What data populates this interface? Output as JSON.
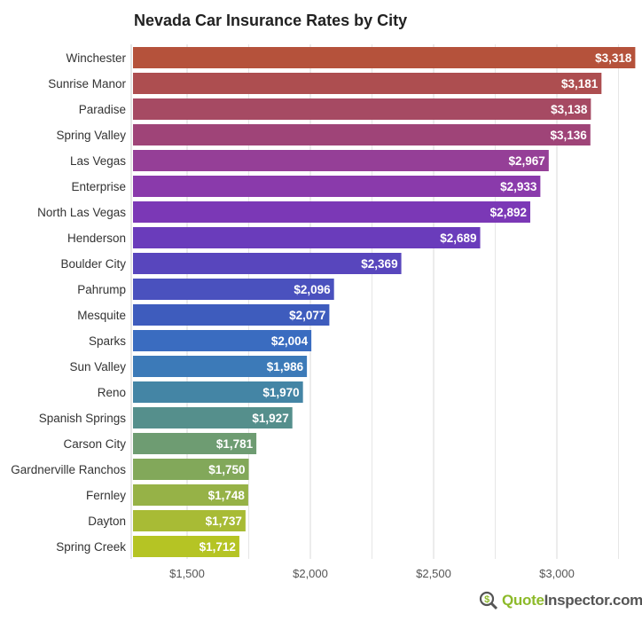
{
  "chart_data": {
    "type": "bar",
    "orientation": "horizontal",
    "title": "Nevada Car Insurance Rates by City",
    "categories": [
      "Winchester",
      "Sunrise Manor",
      "Paradise",
      "Spring Valley",
      "Las Vegas",
      "Enterprise",
      "North Las Vegas",
      "Henderson",
      "Boulder City",
      "Pahrump",
      "Mesquite",
      "Sparks",
      "Sun Valley",
      "Reno",
      "Spanish Springs",
      "Carson City",
      "Gardnerville Ranchos",
      "Fernley",
      "Dayton",
      "Spring Creek"
    ],
    "values": [
      3318,
      3181,
      3138,
      3136,
      2967,
      2933,
      2892,
      2689,
      2369,
      2096,
      2077,
      2004,
      1986,
      1970,
      1927,
      1781,
      1750,
      1748,
      1737,
      1712
    ],
    "data_labels": [
      "$3,318",
      "$3,181",
      "$3,138",
      "$3,136",
      "$2,967",
      "$2,933",
      "$2,892",
      "$2,689",
      "$2,369",
      "$2,096",
      "$2,077",
      "$2,004",
      "$1,986",
      "$1,970",
      "$1,927",
      "$1,781",
      "$1,750",
      "$1,748",
      "$1,737",
      "$1,712"
    ],
    "colors": [
      "#b5523b",
      "#ad4e50",
      "#a64a63",
      "#9f4478",
      "#953f97",
      "#8a3aab",
      "#7b38b6",
      "#6a3cbb",
      "#5846bd",
      "#4a51be",
      "#3e5cbd",
      "#3a6cc0",
      "#3c7ab8",
      "#4485a5",
      "#558f8c",
      "#6e9c72",
      "#82a85a",
      "#96b247",
      "#a8bb35",
      "#b5c424"
    ],
    "x_ticks": [
      1500,
      2000,
      2500,
      3000
    ],
    "x_tick_labels": [
      "$1,500",
      "$2,000",
      "$2,500",
      "$3,000"
    ],
    "xlim": [
      1273,
      3330
    ],
    "grid": true,
    "xlabel": "",
    "ylabel": ""
  },
  "logo": {
    "part1": "Quote",
    "part2": "Inspector.com",
    "icon": "dollar-magnifier-icon"
  }
}
